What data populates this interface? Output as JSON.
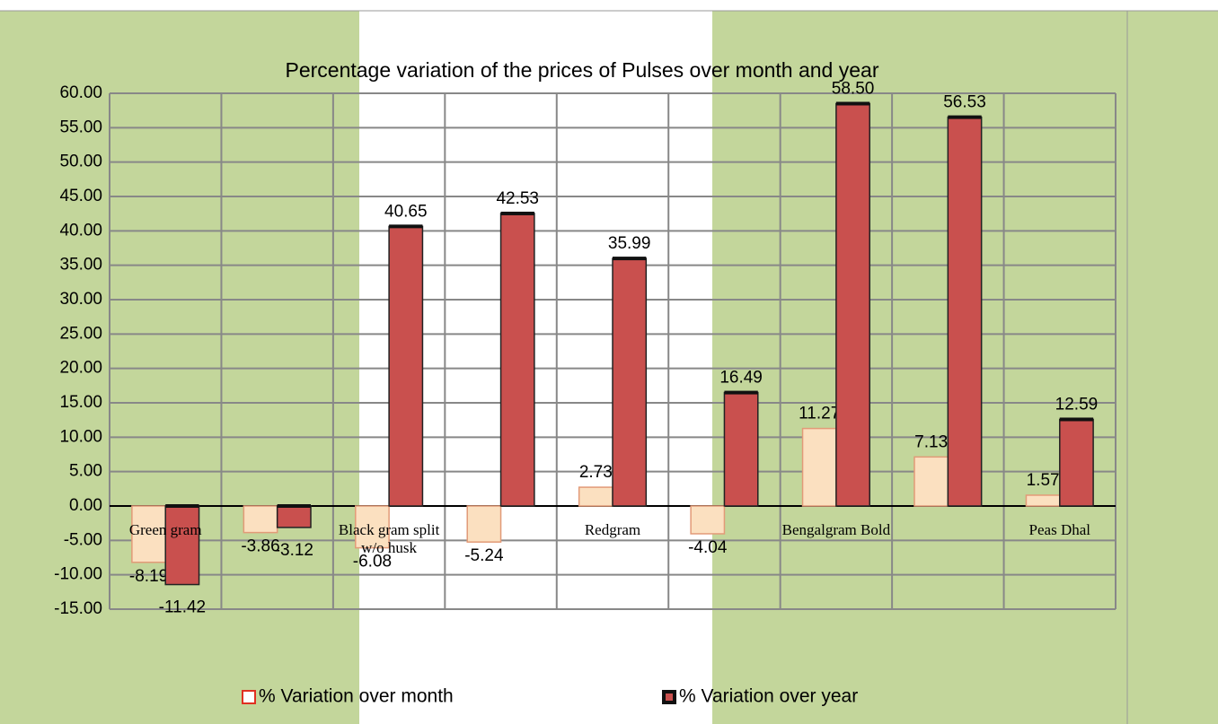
{
  "chart_data": {
    "type": "bar",
    "title": "Percentage variation of the prices of Pulses over month and year",
    "categories": [
      "Green gram",
      null,
      "Black gram  split w/o husk",
      null,
      "Redgram",
      null,
      "Bengalgram Bold",
      null,
      "Peas Dhal"
    ],
    "series": [
      {
        "name": "% Variation over month",
        "color": "#fbe0c0",
        "values": [
          -8.19,
          -3.86,
          -6.08,
          -5.24,
          2.73,
          -4.04,
          11.27,
          7.13,
          1.57
        ],
        "value_labels": [
          "-8.19",
          "-3.86",
          "-6.08",
          "-5.24",
          "2.73",
          "-4.04",
          "11.27",
          "7.13",
          "1.57"
        ]
      },
      {
        "name": "% Variation over year",
        "color": "#c9504e",
        "values": [
          -11.42,
          -3.12,
          40.65,
          42.53,
          35.99,
          16.49,
          58.5,
          56.53,
          12.59
        ],
        "value_labels": [
          "-11.42",
          "-3.12",
          "40.65",
          "42.53",
          "35.99",
          "16.49",
          "58.50",
          "56.53",
          "12.59"
        ]
      }
    ],
    "ylim": [
      -15,
      60
    ],
    "yticks": [
      {
        "value": -15,
        "label": "-15.00"
      },
      {
        "value": -10,
        "label": "-10.00"
      },
      {
        "value": -5,
        "label": "-5.00"
      },
      {
        "value": 0,
        "label": "0.00"
      },
      {
        "value": 5,
        "label": "5.00"
      },
      {
        "value": 10,
        "label": "10.00"
      },
      {
        "value": 15,
        "label": "15.00"
      },
      {
        "value": 20,
        "label": "20.00"
      },
      {
        "value": 25,
        "label": "25.00"
      },
      {
        "value": 30,
        "label": "30.00"
      },
      {
        "value": 35,
        "label": "35.00"
      },
      {
        "value": 40,
        "label": "40.00"
      },
      {
        "value": 45,
        "label": "45.00"
      },
      {
        "value": 50,
        "label": "50.00"
      },
      {
        "value": 55,
        "label": "55.00"
      },
      {
        "value": 60,
        "label": "60.00"
      }
    ],
    "grid": true
  }
}
